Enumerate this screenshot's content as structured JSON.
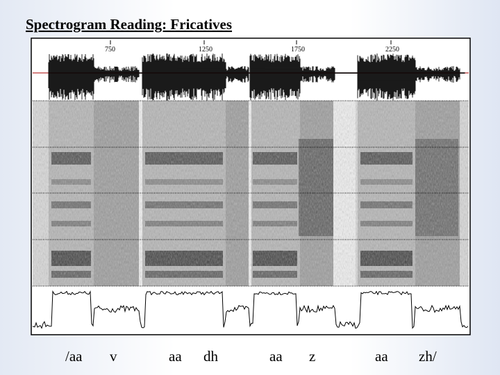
{
  "title": "Spectrogram Reading: Fricatives",
  "time_ticks": [
    750,
    1250,
    1750,
    2250
  ],
  "segments": [
    "/aa",
    "v",
    "aa",
    "dh",
    "aa",
    "z",
    "aa",
    "zh/"
  ]
}
